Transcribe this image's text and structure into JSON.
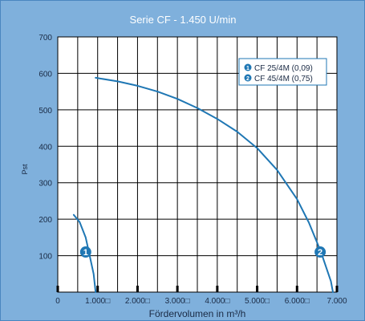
{
  "chart_data": {
    "type": "line",
    "title": "Serie CF - 1.450 U/min",
    "xlabel": "Fördervolumen in m³/h",
    "ylabel": "Pst",
    "xlim": [
      0,
      7000
    ],
    "ylim": [
      0,
      700
    ],
    "x_ticks": [
      {
        "value": 0,
        "label": "0"
      },
      {
        "value": 1000,
        "label": "1.000□"
      },
      {
        "value": 2000,
        "label": "2.000□"
      },
      {
        "value": 3000,
        "label": "3.000□"
      },
      {
        "value": 4000,
        "label": "4.000□"
      },
      {
        "value": 5000,
        "label": "5.000□"
      },
      {
        "value": 6000,
        "label": "6.000□"
      },
      {
        "value": 7000,
        "label": "7.000"
      }
    ],
    "y_ticks": [
      {
        "value": 100,
        "label": "100"
      },
      {
        "value": 200,
        "label": "200"
      },
      {
        "value": 300,
        "label": "300"
      },
      {
        "value": 400,
        "label": "400"
      },
      {
        "value": 500,
        "label": "500"
      },
      {
        "value": 600,
        "label": "600"
      },
      {
        "value": 700,
        "label": "700"
      }
    ],
    "grid": true,
    "legend_position": "top-right",
    "colors": {
      "background": "#7fb0dc",
      "plot_area": "#ffffff",
      "grid": "#000000",
      "series": "#1f77b4",
      "marker": "#1f77b4"
    },
    "series": [
      {
        "name": "CF 25/4M (0,09)",
        "marker_label": "1",
        "marker_at": {
          "x": 700,
          "y": 110
        },
        "points": [
          {
            "x": 400,
            "y": 212
          },
          {
            "x": 550,
            "y": 192
          },
          {
            "x": 700,
            "y": 150
          },
          {
            "x": 800,
            "y": 100
          },
          {
            "x": 900,
            "y": 50
          },
          {
            "x": 950,
            "y": 0
          }
        ]
      },
      {
        "name": "CF 45/4M (0,75)",
        "marker_label": "2",
        "marker_at": {
          "x": 6580,
          "y": 110
        },
        "points": [
          {
            "x": 950,
            "y": 588
          },
          {
            "x": 1500,
            "y": 578
          },
          {
            "x": 2000,
            "y": 566
          },
          {
            "x": 2500,
            "y": 550
          },
          {
            "x": 3000,
            "y": 530
          },
          {
            "x": 3500,
            "y": 505
          },
          {
            "x": 4000,
            "y": 475
          },
          {
            "x": 4500,
            "y": 440
          },
          {
            "x": 5000,
            "y": 395
          },
          {
            "x": 5500,
            "y": 335
          },
          {
            "x": 6000,
            "y": 255
          },
          {
            "x": 6300,
            "y": 190
          },
          {
            "x": 6600,
            "y": 110
          },
          {
            "x": 6850,
            "y": 30
          },
          {
            "x": 6900,
            "y": 0
          }
        ]
      }
    ]
  }
}
